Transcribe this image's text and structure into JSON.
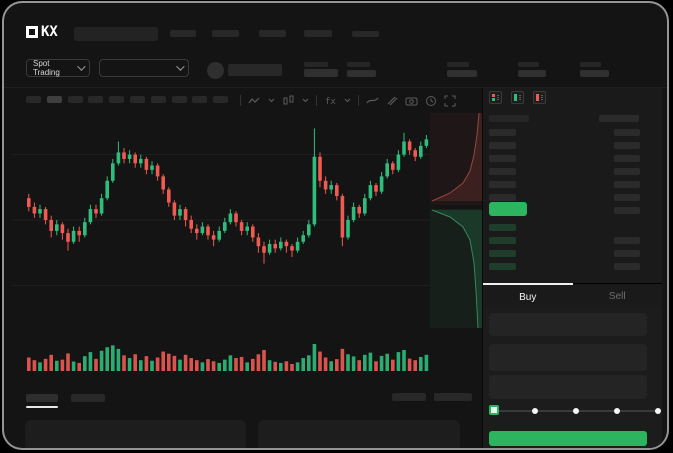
{
  "brand": {
    "name": "OKX",
    "logo_suffix": "KX"
  },
  "header": {
    "market_selector_label": "Spot Trading",
    "nav_placeholder_count": 5,
    "ticker_stat_count": 5
  },
  "toolbar": {
    "timeframe_button_count": 10,
    "active_timeframe_index": 1,
    "icons": [
      "line-style-icon",
      "chart-type-icon",
      "indicators-icon",
      "trendline-tool-icon",
      "brush-tool-icon",
      "camera-snapshot-icon",
      "history-clock-icon",
      "fullscreen-icon"
    ]
  },
  "order_book": {
    "view_icons": [
      "book-combined-icon",
      "book-bids-icon",
      "book-asks-icon"
    ],
    "asks_left_rows": 6,
    "asks_right_rows": 7,
    "bids_left_rows": 4,
    "bids_right_rows": 3,
    "last_price_highlight_color": "#2db45f"
  },
  "trade_panel": {
    "buy_label": "Buy",
    "sell_label": "Sell",
    "slider_steps": 5,
    "button_color": "#2db45f"
  },
  "colors": {
    "accent_green": "#2db45f",
    "candle_up": "#2ebd7c",
    "candle_down": "#ef5a52",
    "background": "#141414",
    "panel": "#1a1a1a"
  },
  "chart_data": {
    "type": "candlestick",
    "title": "",
    "note": "OHLC values on relative 0-100 price scale read from pixel positions; no axis labels are rendered in the source UI",
    "price_scale": [
      0,
      100
    ],
    "gridline_prices": [
      20,
      50,
      80
    ],
    "up_color": "#2ebd7c",
    "down_color": "#ef5a52",
    "candles_ochl": [
      [
        60,
        56,
        62,
        54
      ],
      [
        56,
        53,
        58,
        51
      ],
      [
        53,
        55,
        57,
        51
      ],
      [
        55,
        50,
        56,
        48
      ],
      [
        50,
        45,
        52,
        42
      ],
      [
        45,
        48,
        50,
        43
      ],
      [
        48,
        44,
        49,
        41
      ],
      [
        44,
        40,
        46,
        36
      ],
      [
        40,
        45,
        47,
        39
      ],
      [
        45,
        43,
        47,
        40
      ],
      [
        43,
        49,
        51,
        42
      ],
      [
        49,
        55,
        57,
        48
      ],
      [
        55,
        53,
        57,
        51
      ],
      [
        53,
        60,
        62,
        52
      ],
      [
        60,
        68,
        70,
        59
      ],
      [
        68,
        76,
        78,
        67
      ],
      [
        76,
        81,
        86,
        75
      ],
      [
        81,
        78,
        83,
        76
      ],
      [
        78,
        80,
        82,
        76
      ],
      [
        80,
        76,
        81,
        74
      ],
      [
        76,
        78,
        80,
        74
      ],
      [
        78,
        73,
        79,
        71
      ],
      [
        73,
        75,
        77,
        71
      ],
      [
        75,
        70,
        76,
        68
      ],
      [
        70,
        64,
        71,
        62
      ],
      [
        64,
        58,
        65,
        56
      ],
      [
        58,
        52,
        59,
        50
      ],
      [
        52,
        55,
        57,
        50
      ],
      [
        55,
        50,
        56,
        47
      ],
      [
        50,
        46,
        52,
        44
      ],
      [
        46,
        44,
        48,
        41
      ],
      [
        44,
        47,
        49,
        43
      ],
      [
        47,
        43,
        48,
        41
      ],
      [
        43,
        41,
        45,
        38
      ],
      [
        41,
        45,
        47,
        40
      ],
      [
        45,
        49,
        51,
        44
      ],
      [
        49,
        53,
        55,
        48
      ],
      [
        53,
        49,
        54,
        47
      ],
      [
        49,
        45,
        50,
        43
      ],
      [
        45,
        47,
        49,
        43
      ],
      [
        47,
        42,
        48,
        40
      ],
      [
        42,
        38,
        44,
        35
      ],
      [
        38,
        35,
        40,
        30
      ],
      [
        35,
        39,
        41,
        34
      ],
      [
        39,
        37,
        41,
        35
      ],
      [
        37,
        40,
        42,
        36
      ],
      [
        40,
        38,
        41,
        35
      ],
      [
        38,
        36,
        39,
        33
      ],
      [
        36,
        40,
        42,
        35
      ],
      [
        40,
        43,
        45,
        39
      ],
      [
        43,
        48,
        50,
        42
      ],
      [
        48,
        79,
        92,
        47
      ],
      [
        79,
        68,
        81,
        65
      ],
      [
        68,
        64,
        70,
        62
      ],
      [
        64,
        66,
        68,
        62
      ],
      [
        66,
        61,
        67,
        59
      ],
      [
        61,
        42,
        62,
        38
      ],
      [
        42,
        50,
        52,
        41
      ],
      [
        50,
        56,
        58,
        49
      ],
      [
        56,
        53,
        57,
        51
      ],
      [
        53,
        60,
        62,
        52
      ],
      [
        60,
        66,
        68,
        59
      ],
      [
        66,
        63,
        67,
        61
      ],
      [
        63,
        70,
        72,
        62
      ],
      [
        70,
        76,
        78,
        69
      ],
      [
        76,
        73,
        77,
        71
      ],
      [
        73,
        80,
        82,
        72
      ],
      [
        80,
        86,
        90,
        79
      ],
      [
        86,
        82,
        87,
        80
      ],
      [
        82,
        79,
        83,
        77
      ],
      [
        79,
        84,
        86,
        78
      ],
      [
        84,
        87,
        89,
        83
      ]
    ],
    "volumes": [
      50,
      40,
      32,
      45,
      60,
      38,
      42,
      65,
      35,
      30,
      55,
      70,
      45,
      75,
      88,
      95,
      82,
      58,
      48,
      62,
      40,
      55,
      38,
      50,
      72,
      64,
      56,
      42,
      60,
      48,
      40,
      32,
      44,
      36,
      30,
      42,
      58,
      48,
      52,
      32,
      45,
      62,
      78,
      40,
      34,
      30,
      36,
      26,
      32,
      48,
      58,
      100,
      72,
      50,
      36,
      44,
      82,
      62,
      54,
      40,
      60,
      68,
      36,
      56,
      64,
      42,
      70,
      78,
      46,
      40,
      52,
      60
    ],
    "depth": {
      "asks_fill": "52,0 49,0 47,22 44,42 40,58 33,70 20,80 2,88 52,88",
      "asks_line": "49,0 47,22 44,42 40,58 33,70 20,80 2,88",
      "bids_fill": "2,97 20,104 33,114 40,127 44,150 46,178 48,215 52,215 52,97",
      "bids_line": "2,97 20,104 33,114 40,127 44,150 46,178 48,215"
    }
  }
}
